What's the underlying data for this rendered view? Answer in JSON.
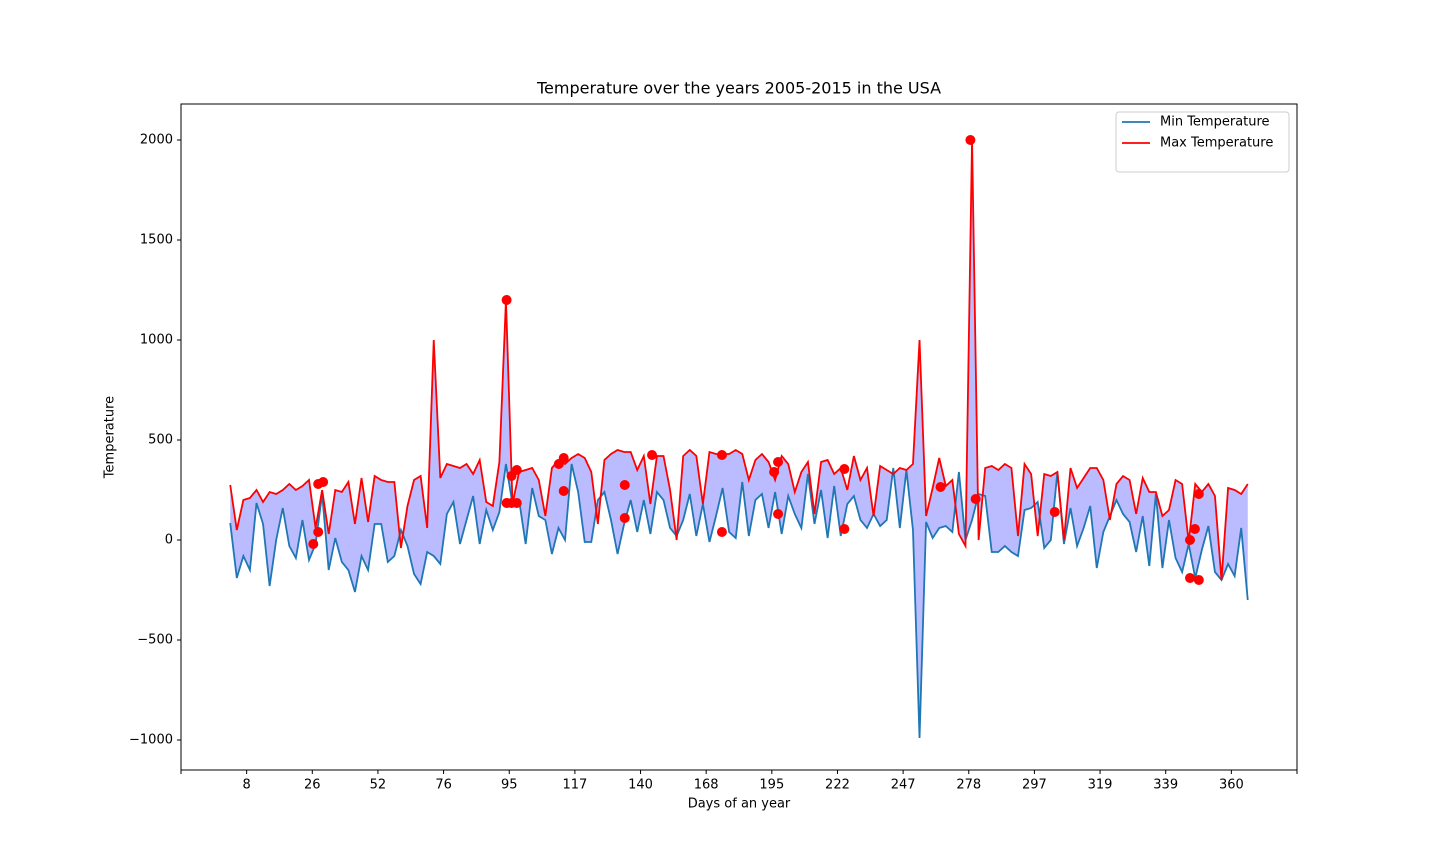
{
  "chart_data": {
    "type": "line",
    "title": "Temperature over the years 2005-2015 in the USA",
    "x_label": "Days of an year",
    "y_label": "Temperature",
    "xlim": [
      0,
      340
    ],
    "ylim": [
      -1150,
      2180
    ],
    "xticks": [
      {
        "value": 0,
        "label": null
      },
      {
        "value": 20,
        "label": "8"
      },
      {
        "value": 40,
        "label": "26"
      },
      {
        "value": 60,
        "label": "52"
      },
      {
        "value": 80,
        "label": "76"
      },
      {
        "value": 100,
        "label": "95"
      },
      {
        "value": 120,
        "label": "117"
      },
      {
        "value": 140,
        "label": "140"
      },
      {
        "value": 160,
        "label": "168"
      },
      {
        "value": 180,
        "label": "195"
      },
      {
        "value": 200,
        "label": "222"
      },
      {
        "value": 220,
        "label": "247"
      },
      {
        "value": 240,
        "label": "278"
      },
      {
        "value": 260,
        "label": "297"
      },
      {
        "value": 280,
        "label": "319"
      },
      {
        "value": 300,
        "label": "339"
      },
      {
        "value": 320,
        "label": "360"
      },
      {
        "value": 340,
        "label": null
      }
    ],
    "yticks": [
      {
        "value": -1000,
        "label": "−1000"
      },
      {
        "value": -500,
        "label": "−500"
      },
      0,
      500,
      1000,
      1500,
      2000
    ],
    "legend": "upper right",
    "fill_color": "#bbbbff",
    "x": [
      15,
      17,
      19,
      21,
      23,
      25,
      27,
      29,
      31,
      33,
      35,
      37,
      39,
      41,
      43,
      45,
      47,
      49,
      51,
      53,
      55,
      57,
      59,
      61,
      63,
      65,
      67,
      69,
      71,
      73,
      75,
      77,
      79,
      81,
      83,
      85,
      87,
      89,
      91,
      93,
      95,
      97,
      99,
      101,
      103,
      105,
      107,
      109,
      111,
      113,
      115,
      117,
      119,
      121,
      123,
      125,
      127,
      129,
      131,
      133,
      135,
      137,
      139,
      141,
      143,
      145,
      147,
      149,
      151,
      153,
      155,
      157,
      159,
      161,
      163,
      165,
      167,
      169,
      171,
      173,
      175,
      177,
      179,
      181,
      183,
      185,
      187,
      189,
      191,
      193,
      195,
      197,
      199,
      201,
      203,
      205,
      207,
      209,
      211,
      213,
      215,
      217,
      219,
      221,
      223,
      225,
      227,
      229,
      231,
      233,
      235,
      237,
      239,
      241,
      243,
      245,
      247,
      249,
      251,
      253,
      255,
      257,
      259,
      261,
      263,
      265,
      267,
      269,
      271,
      273,
      275,
      277,
      279,
      281,
      283,
      285,
      287,
      289,
      291,
      293,
      295,
      297,
      299,
      301,
      303,
      305,
      307,
      309,
      311,
      313,
      315,
      317,
      319,
      321,
      323,
      325
    ],
    "series": [
      {
        "name": "Min Temperature",
        "color": "#1f77b4",
        "values": [
          85,
          -190,
          -80,
          -150,
          185,
          80,
          -230,
          0,
          160,
          -30,
          -90,
          100,
          -100,
          -20,
          230,
          -150,
          10,
          -110,
          -150,
          -260,
          -80,
          -150,
          80,
          80,
          -110,
          -80,
          50,
          -30,
          -170,
          -220,
          -60,
          -80,
          -120,
          130,
          190,
          -20,
          100,
          220,
          -20,
          150,
          50,
          140,
          380,
          180,
          200,
          -20,
          260,
          120,
          100,
          -70,
          60,
          0,
          380,
          240,
          -10,
          -10,
          200,
          240,
          100,
          -70,
          80,
          200,
          40,
          200,
          30,
          240,
          200,
          60,
          20,
          100,
          230,
          20,
          180,
          -10,
          120,
          260,
          40,
          10,
          290,
          20,
          200,
          230,
          60,
          240,
          30,
          220,
          130,
          60,
          330,
          80,
          250,
          10,
          270,
          20,
          180,
          220,
          100,
          60,
          130,
          70,
          100,
          360,
          60,
          350,
          50,
          -990,
          90,
          10,
          60,
          70,
          40,
          340,
          0,
          100,
          230,
          220,
          -60,
          -60,
          -30,
          -60,
          -80,
          150,
          160,
          190,
          -40,
          0,
          340,
          -20,
          160,
          -30,
          60,
          170,
          -140,
          40,
          120,
          200,
          130,
          90,
          -60,
          120,
          -130,
          230,
          -140,
          100,
          -90,
          -160,
          -20,
          -190,
          -50,
          70,
          -160,
          -200,
          -120,
          -180,
          60,
          -300
        ]
      },
      {
        "name": "Max Temperature",
        "color": "red",
        "values": [
          275,
          50,
          200,
          210,
          250,
          190,
          240,
          230,
          250,
          280,
          250,
          270,
          300,
          60,
          250,
          30,
          250,
          240,
          290,
          80,
          310,
          90,
          320,
          300,
          290,
          290,
          -40,
          170,
          300,
          320,
          60,
          1000,
          310,
          380,
          370,
          360,
          380,
          330,
          400,
          190,
          170,
          390,
          1200,
          180,
          340,
          350,
          360,
          300,
          120,
          360,
          400,
          380,
          410,
          430,
          410,
          340,
          80,
          400,
          430,
          450,
          440,
          440,
          350,
          420,
          180,
          420,
          420,
          250,
          0,
          420,
          450,
          420,
          180,
          440,
          430,
          430,
          430,
          450,
          430,
          300,
          400,
          430,
          390,
          300,
          420,
          380,
          240,
          340,
          390,
          130,
          390,
          400,
          330,
          360,
          250,
          420,
          300,
          360,
          120,
          370,
          350,
          330,
          360,
          350,
          380,
          1000,
          120,
          260,
          410,
          270,
          300,
          30,
          -30,
          2000,
          0,
          360,
          370,
          350,
          380,
          360,
          20,
          380,
          330,
          20,
          330,
          320,
          340,
          0,
          360,
          260,
          310,
          360,
          360,
          300,
          100,
          280,
          320,
          300,
          130,
          310,
          240,
          240,
          120,
          150,
          300,
          280,
          -10,
          280,
          240,
          280,
          220,
          -200,
          260,
          250,
          230,
          280
        ]
      }
    ],
    "records": {
      "color": "red",
      "x": [
        40.3,
        41.8,
        43.3,
        41.8,
        99.2,
        99.2,
        100.7,
        102.3,
        100.7,
        102.3,
        115.1,
        116.6,
        116.6,
        135.2,
        135.2,
        143.5,
        164.8,
        164.8,
        180.7,
        181.9,
        181.9,
        202.1,
        202.1,
        231.4,
        240.5,
        242.1,
        266.2,
        307.4,
        308.9,
        307.4,
        310.1,
        310.1
      ],
      "values": [
        -20,
        280,
        290,
        40,
        1200,
        185,
        185,
        185,
        320,
        350,
        380,
        410,
        245,
        275,
        110,
        425,
        425,
        40,
        340,
        390,
        130,
        355,
        55,
        265,
        2000,
        205,
        140,
        -190,
        55,
        0,
        -200,
        230
      ]
    }
  }
}
